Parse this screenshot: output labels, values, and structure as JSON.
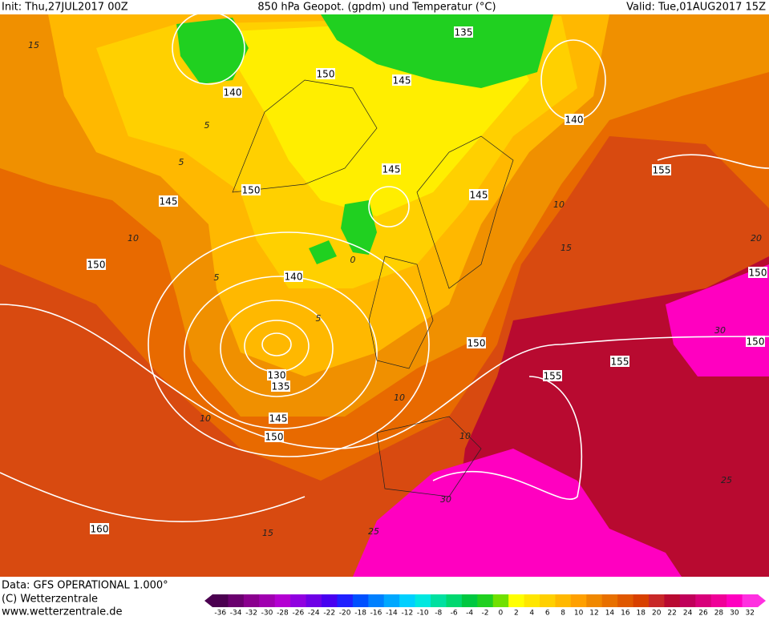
{
  "header": {
    "init": "Init: Thu,27JUL2017 00Z",
    "title": "850 hPa Geopot. (gpdm) und Temperatur (°C)",
    "valid": "Valid: Tue,01AUG2017 15Z"
  },
  "footer": {
    "data": "Data: GFS OPERATIONAL 1.000°",
    "copyright": "(C) Wetterzentrale",
    "url": "www.wetterzentrale.de"
  },
  "color_scale": {
    "values": [
      -36,
      -34,
      -32,
      -30,
      -28,
      -26,
      -24,
      -22,
      -20,
      -18,
      -16,
      -14,
      -12,
      -10,
      -8,
      -6,
      -4,
      -2,
      0,
      2,
      4,
      6,
      8,
      10,
      12,
      14,
      16,
      18,
      20,
      22,
      24,
      26,
      28,
      30,
      32
    ],
    "colors": [
      "#4b0050",
      "#6a006e",
      "#8a008e",
      "#a000b0",
      "#b400d2",
      "#9000e0",
      "#6e00e6",
      "#4800f0",
      "#2020ff",
      "#0050ff",
      "#0080ff",
      "#00a8ff",
      "#00d0ff",
      "#00e8e0",
      "#00e0a0",
      "#00d870",
      "#00c840",
      "#20d020",
      "#70e000",
      "#ffff00",
      "#ffe600",
      "#ffd000",
      "#ffb800",
      "#ffa000",
      "#f08800",
      "#e87000",
      "#e05800",
      "#d84000",
      "#c82828",
      "#b80a30",
      "#c0005a",
      "#d8007a",
      "#f00098",
      "#ff00c0",
      "#ff30e0"
    ]
  },
  "geopotential_labels": [
    135,
    140,
    150,
    145,
    140,
    150,
    145,
    155,
    145,
    145,
    150,
    140,
    130,
    135,
    145,
    150,
    150,
    155,
    155,
    150,
    150,
    160
  ],
  "temperature_labels": [
    15,
    5,
    5,
    10,
    5,
    0,
    5,
    10,
    10,
    10,
    15,
    20,
    30,
    10,
    30,
    25,
    25,
    15
  ]
}
